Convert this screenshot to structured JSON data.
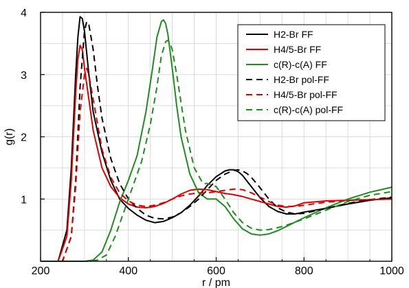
{
  "chart_data": {
    "type": "line",
    "title": "",
    "xlabel": "r / pm",
    "ylabel": "g(r)",
    "xlim": [
      200,
      1000
    ],
    "ylim": [
      0,
      4
    ],
    "xticks": [
      200,
      400,
      600,
      800,
      1000
    ],
    "yticks": [
      1,
      2,
      3,
      4
    ],
    "grid": true,
    "legend_position": "top-right",
    "series": [
      {
        "name": "H2-Br FF",
        "color": "#000000",
        "dash": "solid",
        "x": [
          200,
          240,
          260,
          270,
          280,
          285,
          290,
          295,
          300,
          310,
          320,
          340,
          360,
          380,
          400,
          420,
          440,
          460,
          480,
          500,
          520,
          540,
          560,
          580,
          600,
          620,
          630,
          640,
          650,
          660,
          680,
          700,
          720,
          740,
          760,
          780,
          800,
          850,
          900,
          950,
          1000
        ],
        "y": [
          0,
          0,
          0.5,
          1.5,
          3.0,
          3.6,
          3.93,
          3.9,
          3.7,
          3.0,
          2.4,
          1.75,
          1.3,
          1.0,
          0.85,
          0.74,
          0.66,
          0.62,
          0.64,
          0.7,
          0.78,
          0.9,
          1.05,
          1.22,
          1.36,
          1.45,
          1.47,
          1.47,
          1.44,
          1.38,
          1.2,
          1.02,
          0.88,
          0.8,
          0.76,
          0.76,
          0.79,
          0.85,
          0.92,
          0.98,
          1.02
        ]
      },
      {
        "name": "H4/5-Br FF",
        "color": "#dd0000",
        "dash": "solid",
        "x": [
          200,
          240,
          260,
          270,
          280,
          285,
          290,
          295,
          300,
          310,
          320,
          340,
          360,
          380,
          400,
          420,
          440,
          460,
          480,
          500,
          520,
          540,
          560,
          580,
          600,
          620,
          640,
          660,
          680,
          700,
          720,
          740,
          760,
          780,
          800,
          850,
          900,
          950,
          1000
        ],
        "y": [
          0,
          0,
          0.4,
          1.3,
          2.7,
          3.25,
          3.47,
          3.4,
          3.1,
          2.6,
          2.1,
          1.5,
          1.2,
          1.02,
          0.92,
          0.87,
          0.86,
          0.88,
          0.93,
          1.0,
          1.08,
          1.14,
          1.16,
          1.15,
          1.12,
          1.09,
          1.07,
          1.04,
          1.0,
          0.96,
          0.92,
          0.88,
          0.87,
          0.89,
          0.94,
          0.97,
          0.98,
          0.99,
          1.0
        ]
      },
      {
        "name": "c(R)-c(A) FF",
        "color": "#1e8c1e",
        "dash": "solid",
        "x": [
          200,
          300,
          320,
          340,
          360,
          380,
          400,
          420,
          440,
          455,
          465,
          475,
          480,
          485,
          490,
          500,
          510,
          520,
          540,
          560,
          580,
          600,
          620,
          640,
          660,
          680,
          700,
          720,
          740,
          760,
          780,
          800,
          850,
          900,
          950,
          1000
        ],
        "y": [
          0,
          0,
          0.02,
          0.15,
          0.5,
          0.95,
          1.3,
          1.7,
          2.4,
          3.1,
          3.6,
          3.85,
          3.88,
          3.82,
          3.65,
          3.1,
          2.5,
          2.0,
          1.4,
          1.1,
          1.0,
          1.0,
          0.88,
          0.68,
          0.52,
          0.44,
          0.42,
          0.44,
          0.49,
          0.56,
          0.63,
          0.7,
          0.86,
          1.0,
          1.11,
          1.19
        ]
      },
      {
        "name": "H2-Br pol-FF",
        "color": "#000000",
        "dash": "dashed",
        "x": [
          200,
          250,
          270,
          280,
          290,
          300,
          305,
          310,
          320,
          330,
          340,
          360,
          380,
          400,
          420,
          440,
          460,
          480,
          500,
          520,
          540,
          560,
          580,
          600,
          620,
          640,
          650,
          660,
          670,
          680,
          700,
          720,
          740,
          760,
          780,
          800,
          850,
          900,
          950,
          1000
        ],
        "y": [
          0,
          0,
          0.4,
          1.3,
          2.8,
          3.7,
          3.85,
          3.8,
          3.4,
          2.8,
          2.3,
          1.65,
          1.25,
          1.0,
          0.85,
          0.74,
          0.69,
          0.68,
          0.71,
          0.78,
          0.88,
          1.0,
          1.15,
          1.3,
          1.4,
          1.46,
          1.47,
          1.45,
          1.41,
          1.35,
          1.18,
          1.0,
          0.86,
          0.79,
          0.76,
          0.77,
          0.85,
          0.93,
          0.99,
          1.03
        ]
      },
      {
        "name": "H4/5-Br pol-FF",
        "color": "#dd0000",
        "dash": "dashed",
        "x": [
          200,
          250,
          270,
          280,
          290,
          300,
          305,
          310,
          320,
          340,
          360,
          380,
          400,
          420,
          440,
          460,
          480,
          500,
          520,
          540,
          560,
          580,
          600,
          620,
          640,
          660,
          680,
          700,
          720,
          740,
          760,
          780,
          800,
          850,
          900,
          950,
          1000
        ],
        "y": [
          0,
          0,
          0.4,
          1.2,
          2.4,
          3.0,
          3.1,
          3.0,
          2.6,
          1.8,
          1.35,
          1.1,
          0.97,
          0.9,
          0.88,
          0.9,
          0.94,
          1.0,
          1.05,
          1.08,
          1.1,
          1.1,
          1.12,
          1.14,
          1.16,
          1.15,
          1.1,
          1.03,
          0.96,
          0.9,
          0.88,
          0.88,
          0.9,
          0.95,
          0.98,
          0.99,
          1.0
        ]
      },
      {
        "name": "c(R)-c(A) pol-FF",
        "color": "#1e8c1e",
        "dash": "dashed",
        "x": [
          200,
          310,
          330,
          350,
          370,
          390,
          410,
          430,
          450,
          465,
          475,
          485,
          490,
          495,
          500,
          510,
          520,
          530,
          550,
          570,
          580,
          600,
          620,
          640,
          660,
          680,
          700,
          720,
          740,
          760,
          780,
          800,
          850,
          900,
          950,
          1000
        ],
        "y": [
          0,
          0,
          0.02,
          0.1,
          0.4,
          0.8,
          1.2,
          1.6,
          2.2,
          2.8,
          3.3,
          3.53,
          3.55,
          3.5,
          3.4,
          3.0,
          2.55,
          2.1,
          1.5,
          1.25,
          1.25,
          1.2,
          1.0,
          0.78,
          0.62,
          0.53,
          0.5,
          0.51,
          0.54,
          0.58,
          0.63,
          0.68,
          0.82,
          0.96,
          1.06,
          1.12
        ]
      }
    ]
  }
}
